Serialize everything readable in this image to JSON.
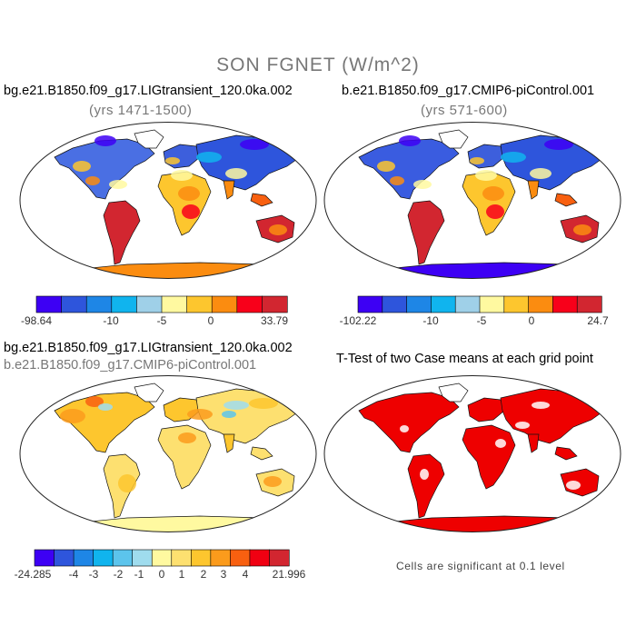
{
  "figure": {
    "title": "SON FGNET (W/m^2)"
  },
  "panels": [
    {
      "id": "case1",
      "label": "bg.e21.B1850.f09_g17.LIGtransient_120.0ka.002",
      "subtitle": "(yrs 1471-1500)",
      "colorbar": {
        "colors": [
          "#3d00f4",
          "#2e55dc",
          "#1e86e6",
          "#10b4ee",
          "#9fd0e8",
          "#fff9a0",
          "#fdc62e",
          "#fb8c10",
          "#f8001a",
          "#d22630"
        ],
        "labels": [
          "-98.64",
          "-10",
          "-5",
          "0",
          "33.79"
        ]
      }
    },
    {
      "id": "case2",
      "label": "b.e21.B1850.f09_g17.CMIP6-piControl.001",
      "subtitle": "(yrs 571-600)",
      "colorbar": {
        "colors": [
          "#3d00f4",
          "#2e55dc",
          "#1e86e6",
          "#10b4ee",
          "#9fd0e8",
          "#fff9a0",
          "#fdc62e",
          "#fb8c10",
          "#f8001a",
          "#d22630"
        ],
        "labels": [
          "-102.22",
          "-10",
          "-5",
          "0",
          "24.7"
        ]
      }
    },
    {
      "id": "diff",
      "label": "bg.e21.B1850.f09_g17.LIGtransient_120.0ka.002",
      "label2": "b.e21.B1850.f09_g17.CMIP6-piControl.001",
      "colorbar": {
        "colors": [
          "#3d00f4",
          "#2e55dc",
          "#1e86e6",
          "#10b4ee",
          "#5cc4ec",
          "#9fdcee",
          "#fff9a0",
          "#fde070",
          "#fdc62e",
          "#fb9b1c",
          "#f86010",
          "#f00012",
          "#d22630"
        ],
        "labels": [
          "-24.285",
          "-4",
          "-3",
          "-2",
          "-1",
          "0",
          "1",
          "2",
          "3",
          "4",
          "21.996"
        ]
      }
    },
    {
      "id": "ttest",
      "label": "T-Test of two Case means at each grid point",
      "note": "Cells are significant at 0.1 level",
      "color": "#ee0000"
    }
  ]
}
